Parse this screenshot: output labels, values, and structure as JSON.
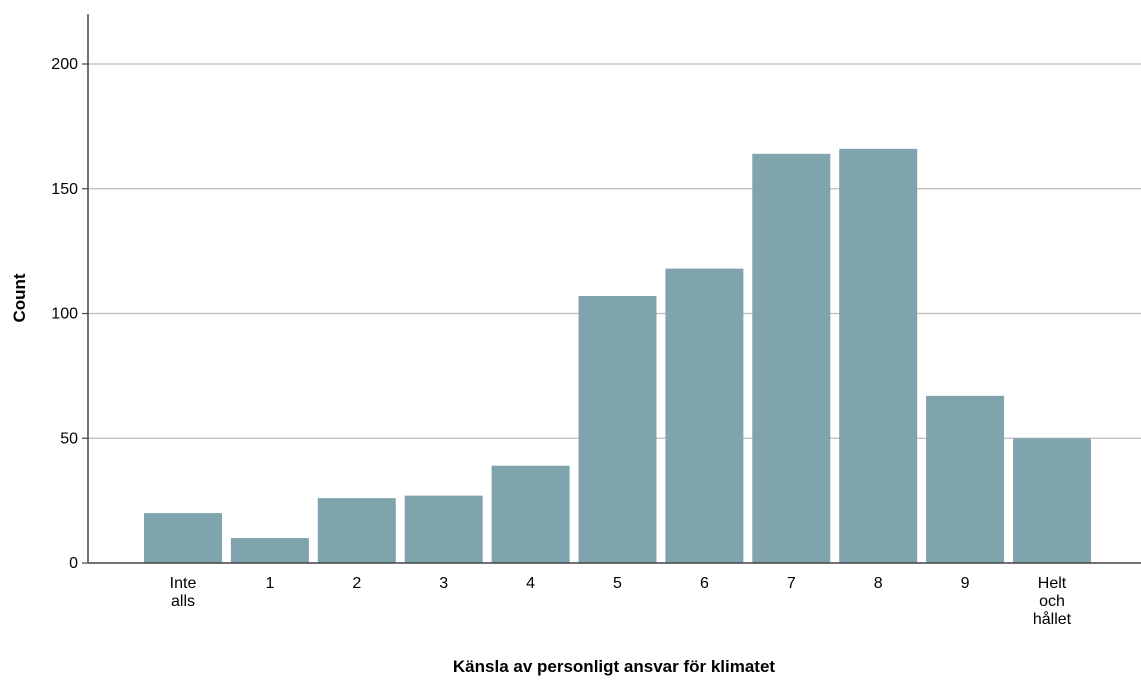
{
  "chart_data": {
    "type": "bar",
    "categories": [
      [
        "Inte",
        "alls"
      ],
      [
        "1"
      ],
      [
        "2"
      ],
      [
        "3"
      ],
      [
        "4"
      ],
      [
        "5"
      ],
      [
        "6"
      ],
      [
        "7"
      ],
      [
        "8"
      ],
      [
        "9"
      ],
      [
        "Helt",
        "och",
        "hållet"
      ]
    ],
    "values": [
      20,
      10,
      26,
      27,
      39,
      107,
      118,
      164,
      166,
      67,
      50
    ],
    "xlabel": "Känsla av personligt ansvar för klimatet",
    "ylabel": "Count",
    "ylim": [
      0,
      220
    ],
    "yticks": [
      0,
      50,
      100,
      150,
      200
    ],
    "grid": true,
    "colors": {
      "bar": "#7fa4ae",
      "grid": "#bdbdbd",
      "axis": "#444444"
    }
  }
}
